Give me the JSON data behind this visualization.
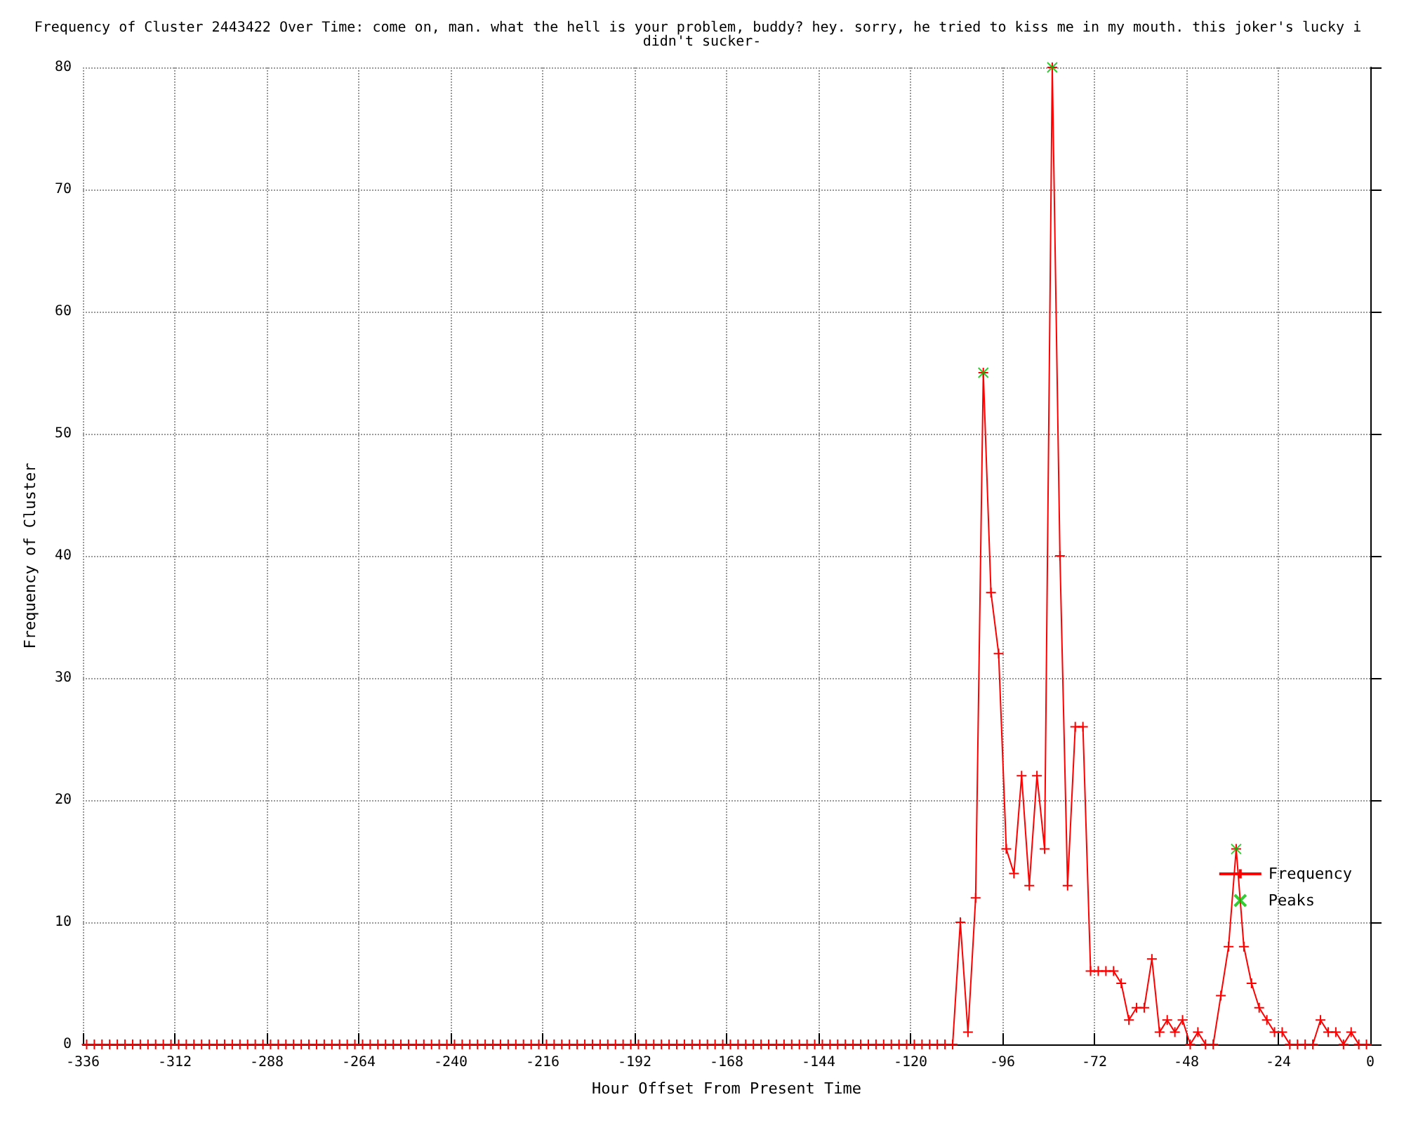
{
  "chart_data": {
    "type": "line",
    "title": "Frequency of Cluster 2443422 Over Time: come on, man. what the hell is your problem, buddy? hey. sorry, he tried to kiss me in my mouth. this joker's lucky i didn't sucker-",
    "xlabel": "Hour Offset From Present Time",
    "ylabel": "Frequency of Cluster",
    "xlim": [
      -336,
      0
    ],
    "xticks": [
      -336,
      -312,
      -288,
      -264,
      -240,
      -216,
      -192,
      -168,
      -144,
      -120,
      -96,
      -72,
      -48,
      -24,
      0
    ],
    "ylim": [
      0,
      80
    ],
    "yticks": [
      0,
      10,
      20,
      30,
      40,
      50,
      60,
      70,
      80
    ],
    "grid": true,
    "legend": "bottom right",
    "marker": "cross",
    "line_style": "solid",
    "series": [
      {
        "name": "Frequency",
        "color": "#ff0000",
        "x": [
          -335,
          -333,
          -331,
          -329,
          -327,
          -325,
          -323,
          -321,
          -319,
          -317,
          -315,
          -313,
          -311,
          -309,
          -307,
          -305,
          -303,
          -301,
          -299,
          -297,
          -295,
          -293,
          -291,
          -289,
          -287,
          -285,
          -283,
          -281,
          -279,
          -277,
          -275,
          -273,
          -271,
          -269,
          -267,
          -265,
          -263,
          -261,
          -259,
          -257,
          -255,
          -253,
          -251,
          -249,
          -247,
          -245,
          -243,
          -241,
          -239,
          -237,
          -235,
          -233,
          -231,
          -229,
          -227,
          -225,
          -223,
          -221,
          -219,
          -217,
          -215,
          -213,
          -211,
          -209,
          -207,
          -205,
          -203,
          -201,
          -199,
          -197,
          -195,
          -193,
          -191,
          -189,
          -187,
          -185,
          -183,
          -181,
          -179,
          -177,
          -175,
          -173,
          -171,
          -169,
          -167,
          -165,
          -163,
          -161,
          -159,
          -157,
          -155,
          -153,
          -151,
          -149,
          -147,
          -145,
          -143,
          -141,
          -139,
          -137,
          -135,
          -133,
          -131,
          -129,
          -127,
          -125,
          -123,
          -121,
          -119,
          -117,
          -115,
          -113,
          -111,
          -109,
          -107,
          -105,
          -103,
          -101,
          -99,
          -97,
          -95,
          -93,
          -91,
          -89,
          -87,
          -85,
          -83,
          -81,
          -79,
          -77,
          -75,
          -73,
          -71,
          -69,
          -67,
          -65,
          -63,
          -61,
          -59,
          -57,
          -55,
          -53,
          -51,
          -49,
          -47,
          -45,
          -43,
          -41,
          -39,
          -37,
          -35,
          -33,
          -31,
          -29,
          -27,
          -25,
          -23,
          -21,
          -19,
          -17,
          -15,
          -13,
          -11,
          -9,
          -7,
          -5,
          -3,
          -1
        ],
        "values": [
          0,
          0,
          0,
          0,
          0,
          0,
          0,
          0,
          0,
          0,
          0,
          0,
          0,
          0,
          0,
          0,
          0,
          0,
          0,
          0,
          0,
          0,
          0,
          0,
          0,
          0,
          0,
          0,
          0,
          0,
          0,
          0,
          0,
          0,
          0,
          0,
          0,
          0,
          0,
          0,
          0,
          0,
          0,
          0,
          0,
          0,
          0,
          0,
          0,
          0,
          0,
          0,
          0,
          0,
          0,
          0,
          0,
          0,
          0,
          0,
          0,
          0,
          0,
          0,
          0,
          0,
          0,
          0,
          0,
          0,
          0,
          0,
          0,
          0,
          0,
          0,
          0,
          0,
          0,
          0,
          0,
          0,
          0,
          0,
          0,
          0,
          0,
          0,
          0,
          0,
          0,
          0,
          0,
          0,
          0,
          0,
          0,
          0,
          0,
          0,
          0,
          0,
          0,
          0,
          0,
          0,
          0,
          0,
          0,
          0,
          0,
          0,
          0,
          0,
          10,
          1,
          12,
          55,
          37,
          32,
          16,
          14,
          22,
          13,
          22,
          16,
          80,
          40,
          13,
          26,
          26,
          6,
          6,
          6,
          6,
          5,
          2,
          3,
          3,
          7,
          1,
          2,
          1,
          2,
          0,
          1,
          0,
          0,
          4,
          8,
          16,
          8,
          5,
          3,
          2,
          1,
          1,
          0,
          0,
          0,
          0,
          2,
          1,
          1,
          0,
          1,
          0,
          0
        ]
      },
      {
        "name": "Peaks",
        "type": "scatter",
        "color": "#00c000",
        "x": [
          -101,
          -83,
          -35
        ],
        "values": [
          55,
          80,
          16
        ]
      }
    ]
  }
}
